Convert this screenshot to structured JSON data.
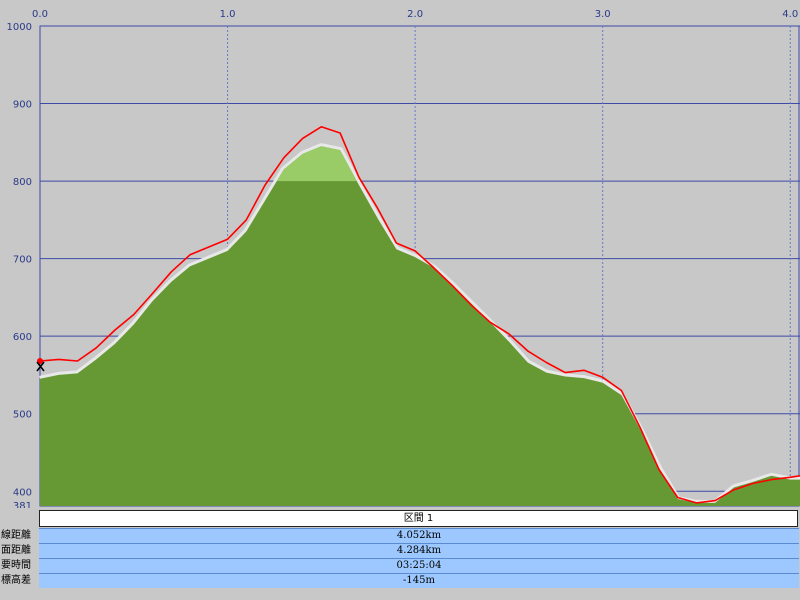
{
  "chart_data": {
    "type": "area",
    "x_ticks": [
      0.0,
      1.0,
      2.0,
      3.0,
      4.0
    ],
    "x_tick_labels": [
      "0.0",
      "1.0",
      "2.0",
      "3.0",
      "4.0"
    ],
    "y_ticks": [
      400,
      500,
      600,
      700,
      800,
      900,
      1000
    ],
    "y_tick_labels": [
      "400",
      "500",
      "600",
      "700",
      "800",
      "900",
      "1000"
    ],
    "y_min_label": "381",
    "xlim": [
      0.0,
      4.052
    ],
    "ylim": [
      381,
      1000
    ],
    "grid": true,
    "series": [
      {
        "kind": "terrain-area",
        "x": [
          0.0,
          0.1,
          0.2,
          0.3,
          0.4,
          0.5,
          0.6,
          0.7,
          0.8,
          0.9,
          1.0,
          1.1,
          1.2,
          1.3,
          1.4,
          1.5,
          1.6,
          1.7,
          1.8,
          1.9,
          2.0,
          2.1,
          2.2,
          2.3,
          2.4,
          2.5,
          2.6,
          2.7,
          2.8,
          2.9,
          3.0,
          3.1,
          3.2,
          3.3,
          3.4,
          3.5,
          3.6,
          3.7,
          3.8,
          3.9,
          4.0,
          4.052
        ],
        "y": [
          545,
          550,
          552,
          570,
          590,
          615,
          645,
          670,
          690,
          700,
          710,
          735,
          775,
          815,
          835,
          845,
          840,
          795,
          752,
          712,
          702,
          688,
          666,
          642,
          618,
          593,
          566,
          553,
          548,
          546,
          540,
          524,
          480,
          430,
          390,
          385,
          385,
          405,
          412,
          420,
          415,
          415
        ]
      },
      {
        "kind": "track-line",
        "color": "#ff0000",
        "x": [
          0.0,
          0.1,
          0.2,
          0.3,
          0.4,
          0.5,
          0.6,
          0.7,
          0.8,
          0.9,
          1.0,
          1.1,
          1.2,
          1.3,
          1.4,
          1.5,
          1.6,
          1.7,
          1.8,
          1.9,
          2.0,
          2.1,
          2.2,
          2.3,
          2.4,
          2.5,
          2.6,
          2.7,
          2.8,
          2.9,
          3.0,
          3.1,
          3.2,
          3.3,
          3.4,
          3.5,
          3.6,
          3.7,
          3.8,
          3.9,
          4.0,
          4.052
        ],
        "y": [
          568,
          570,
          568,
          585,
          608,
          628,
          655,
          683,
          705,
          715,
          725,
          750,
          795,
          830,
          855,
          870,
          862,
          805,
          765,
          720,
          710,
          688,
          665,
          640,
          618,
          603,
          581,
          566,
          553,
          556,
          547,
          530,
          482,
          428,
          392,
          385,
          388,
          402,
          410,
          415,
          418,
          420
        ]
      }
    ],
    "colors": {
      "plot_background": "#c8c8c8",
      "terrain_dark": "#669933",
      "terrain_light": "#99cc66",
      "terrain_shadow": "#e8e8e8",
      "track": "#ff0000",
      "grid_major": "#3c4aa8",
      "grid_minor": "#6a78c8"
    },
    "start_marker_icon": "x-marker-icon"
  },
  "info_panel": {
    "section_label": "区間 1",
    "rows": [
      {
        "label": "線距離",
        "value": "4.052km"
      },
      {
        "label": "面距離",
        "value": "4.284km"
      },
      {
        "label": "要時間",
        "value": "03:25:04"
      },
      {
        "label": "標高差",
        "value": "-145m"
      }
    ]
  }
}
